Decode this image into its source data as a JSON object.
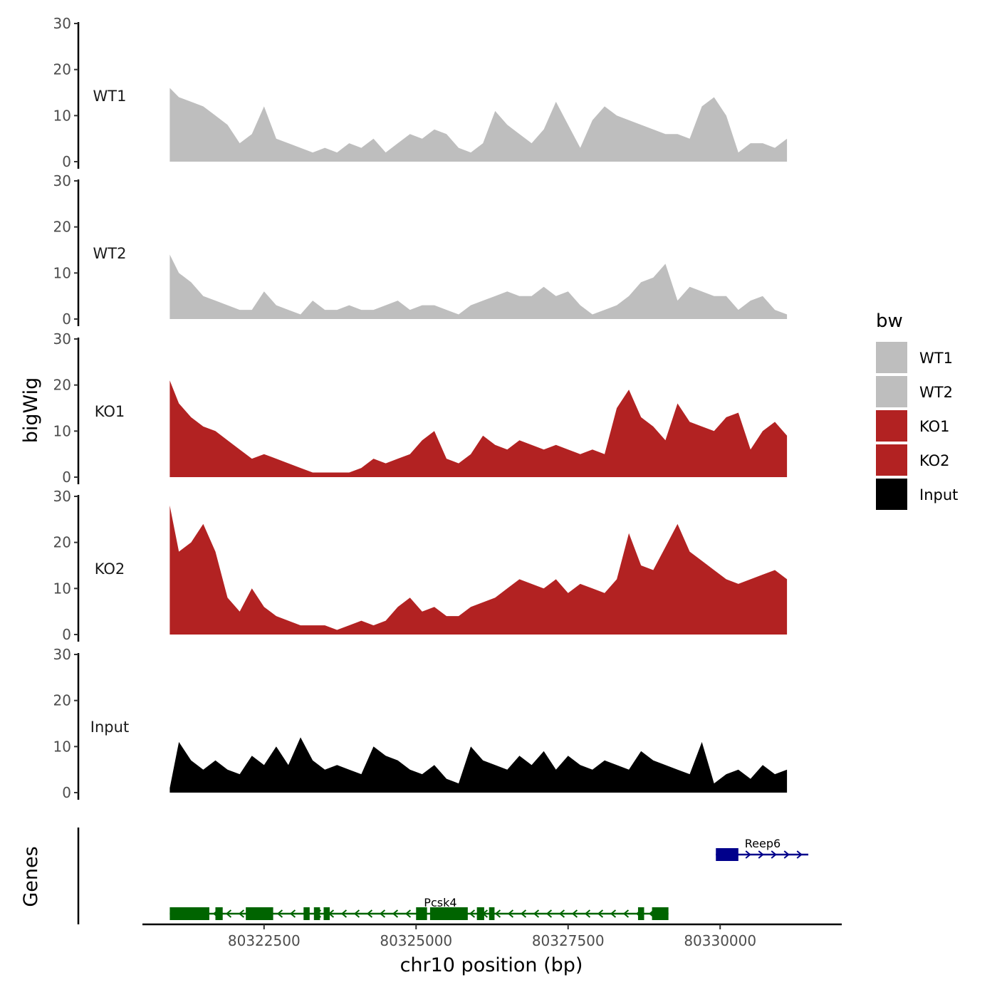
{
  "chart_data": {
    "type": "area",
    "ylabel": "bigWig",
    "xlabel": "chr10 position (bp)",
    "xlim": [
      80320500,
      80332000
    ],
    "ylim": [
      0,
      30
    ],
    "yticks": [
      0,
      10,
      20,
      30
    ],
    "xticks": [
      80322500,
      80325000,
      80327500,
      80330000
    ],
    "legend": {
      "title": "bw",
      "position": "right",
      "items": [
        {
          "label": "WT1",
          "color": "#BEBEBE"
        },
        {
          "label": "WT2",
          "color": "#BEBEBE"
        },
        {
          "label": "KO1",
          "color": "#B22222"
        },
        {
          "label": "KO2",
          "color": "#B22222"
        },
        {
          "label": "Input",
          "color": "#000000"
        }
      ]
    },
    "tracks": [
      {
        "name": "WT1",
        "color": "#BEBEBE",
        "x": [
          80320950,
          80321100,
          80321300,
          80321500,
          80321700,
          80321900,
          80322100,
          80322300,
          80322500,
          80322700,
          80322900,
          80323100,
          80323300,
          80323500,
          80323700,
          80323900,
          80324100,
          80324300,
          80324500,
          80324700,
          80324900,
          80325100,
          80325300,
          80325500,
          80325700,
          80325900,
          80326100,
          80326300,
          80326500,
          80326700,
          80326900,
          80327100,
          80327300,
          80327500,
          80327700,
          80327900,
          80328100,
          80328300,
          80328500,
          80328700,
          80328900,
          80329100,
          80329300,
          80329500,
          80329700,
          80329900,
          80330100,
          80330300,
          80330500,
          80330700,
          80330900,
          80331100
        ],
        "y": [
          16,
          14,
          13,
          12,
          10,
          8,
          4,
          6,
          12,
          5,
          4,
          3,
          2,
          3,
          2,
          4,
          3,
          5,
          2,
          4,
          6,
          5,
          7,
          6,
          3,
          2,
          4,
          11,
          8,
          6,
          4,
          7,
          13,
          8,
          3,
          9,
          12,
          10,
          9,
          8,
          7,
          6,
          6,
          5,
          12,
          14,
          10,
          2,
          4,
          4,
          3,
          5
        ]
      },
      {
        "name": "WT2",
        "color": "#BEBEBE",
        "x": [
          80320950,
          80321100,
          80321300,
          80321500,
          80321700,
          80321900,
          80322100,
          80322300,
          80322500,
          80322700,
          80322900,
          80323100,
          80323300,
          80323500,
          80323700,
          80323900,
          80324100,
          80324300,
          80324500,
          80324700,
          80324900,
          80325100,
          80325300,
          80325500,
          80325700,
          80325900,
          80326100,
          80326300,
          80326500,
          80326700,
          80326900,
          80327100,
          80327300,
          80327500,
          80327700,
          80327900,
          80328100,
          80328300,
          80328500,
          80328700,
          80328900,
          80329100,
          80329300,
          80329500,
          80329700,
          80329900,
          80330100,
          80330300,
          80330500,
          80330700,
          80330900,
          80331100
        ],
        "y": [
          14,
          10,
          8,
          5,
          4,
          3,
          2,
          2,
          6,
          3,
          2,
          1,
          4,
          2,
          2,
          3,
          2,
          2,
          3,
          4,
          2,
          3,
          3,
          2,
          1,
          3,
          4,
          5,
          6,
          5,
          5,
          7,
          5,
          6,
          3,
          1,
          2,
          3,
          5,
          8,
          9,
          12,
          4,
          7,
          6,
          5,
          5,
          2,
          4,
          5,
          2,
          1
        ]
      },
      {
        "name": "KO1",
        "color": "#B22222",
        "x": [
          80320950,
          80321100,
          80321300,
          80321500,
          80321700,
          80321900,
          80322100,
          80322300,
          80322500,
          80322700,
          80322900,
          80323100,
          80323300,
          80323500,
          80323700,
          80323900,
          80324100,
          80324300,
          80324500,
          80324700,
          80324900,
          80325100,
          80325300,
          80325500,
          80325700,
          80325900,
          80326100,
          80326300,
          80326500,
          80326700,
          80326900,
          80327100,
          80327300,
          80327500,
          80327700,
          80327900,
          80328100,
          80328300,
          80328500,
          80328700,
          80328900,
          80329100,
          80329300,
          80329500,
          80329700,
          80329900,
          80330100,
          80330300,
          80330500,
          80330700,
          80330900,
          80331100
        ],
        "y": [
          21,
          16,
          13,
          11,
          10,
          8,
          6,
          4,
          5,
          4,
          3,
          2,
          1,
          1,
          1,
          1,
          2,
          4,
          3,
          4,
          5,
          8,
          10,
          4,
          3,
          5,
          9,
          7,
          6,
          8,
          7,
          6,
          7,
          6,
          5,
          6,
          5,
          15,
          19,
          13,
          11,
          8,
          16,
          12,
          11,
          10,
          13,
          14,
          6,
          10,
          12,
          9
        ]
      },
      {
        "name": "KO2",
        "color": "#B22222",
        "x": [
          80320950,
          80321100,
          80321300,
          80321500,
          80321700,
          80321900,
          80322100,
          80322300,
          80322500,
          80322700,
          80322900,
          80323100,
          80323300,
          80323500,
          80323700,
          80323900,
          80324100,
          80324300,
          80324500,
          80324700,
          80324900,
          80325100,
          80325300,
          80325500,
          80325700,
          80325900,
          80326100,
          80326300,
          80326500,
          80326700,
          80326900,
          80327100,
          80327300,
          80327500,
          80327700,
          80327900,
          80328100,
          80328300,
          80328500,
          80328700,
          80328900,
          80329100,
          80329300,
          80329500,
          80329700,
          80329900,
          80330100,
          80330300,
          80330500,
          80330700,
          80330900,
          80331100
        ],
        "y": [
          28,
          18,
          20,
          24,
          18,
          8,
          5,
          10,
          6,
          4,
          3,
          2,
          2,
          2,
          1,
          2,
          3,
          2,
          3,
          6,
          8,
          5,
          6,
          4,
          4,
          6,
          7,
          8,
          10,
          12,
          11,
          10,
          12,
          9,
          11,
          10,
          9,
          12,
          22,
          15,
          14,
          19,
          24,
          18,
          16,
          14,
          12,
          11,
          12,
          13,
          14,
          12
        ]
      },
      {
        "name": "Input",
        "color": "#000000",
        "x": [
          80320950,
          80321100,
          80321300,
          80321500,
          80321700,
          80321900,
          80322100,
          80322300,
          80322500,
          80322700,
          80322900,
          80323100,
          80323300,
          80323500,
          80323700,
          80323900,
          80324100,
          80324300,
          80324500,
          80324700,
          80324900,
          80325100,
          80325300,
          80325500,
          80325700,
          80325900,
          80326100,
          80326300,
          80326500,
          80326700,
          80326900,
          80327100,
          80327300,
          80327500,
          80327700,
          80327900,
          80328100,
          80328300,
          80328500,
          80328700,
          80328900,
          80329100,
          80329300,
          80329500,
          80329700,
          80329900,
          80330100,
          80330300,
          80330500,
          80330700,
          80330900,
          80331100
        ],
        "y": [
          1,
          11,
          7,
          5,
          7,
          5,
          4,
          8,
          6,
          10,
          6,
          12,
          7,
          5,
          6,
          5,
          4,
          10,
          8,
          7,
          5,
          4,
          6,
          3,
          2,
          10,
          7,
          6,
          5,
          8,
          6,
          9,
          5,
          8,
          6,
          5,
          7,
          6,
          5,
          9,
          7,
          6,
          5,
          4,
          11,
          2,
          4,
          5,
          3,
          6,
          4,
          5
        ]
      }
    ],
    "genes": {
      "title": "Genes",
      "items": [
        {
          "name": "Reep6",
          "strand": "+",
          "start": 80329930,
          "end": 80331450,
          "color": "#00008B"
        },
        {
          "name": "Pcsk4",
          "strand": "-",
          "start": 80320950,
          "end": 80329150,
          "color": "#006400"
        }
      ]
    }
  }
}
